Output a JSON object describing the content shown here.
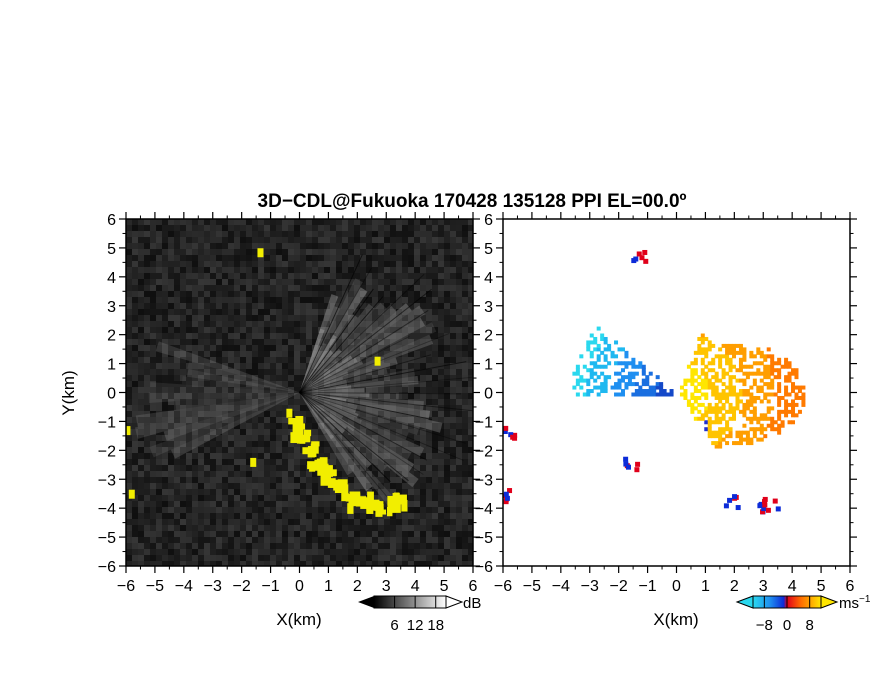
{
  "title": "3D−CDL@Fukuoka 170428 135128 PPI EL=00.0º",
  "chart_data": [
    {
      "type": "heatmap",
      "panel": "reflectivity",
      "xlabel": "X(km)",
      "ylabel": "Y(km)",
      "xlim": [
        -6,
        6
      ],
      "ylim": [
        -6,
        6
      ],
      "xticks": [
        "−6",
        "−5",
        "−4",
        "−3",
        "−2",
        "−1",
        "0",
        "1",
        "2",
        "3",
        "4",
        "5",
        "6"
      ],
      "yticks": [
        "−6",
        "−5",
        "−4",
        "−3",
        "−2",
        "−1",
        "0",
        "1",
        "2",
        "3",
        "4",
        "5",
        "6"
      ],
      "colorbar": {
        "unit": "dB",
        "ticks": [
          "6",
          "12",
          "18"
        ],
        "range": [
          0,
          21
        ]
      },
      "highlight_color": "#f2ee00",
      "highlight_regions": [
        {
          "x": -0.35,
          "y": -0.7
        },
        {
          "x": 0.1,
          "y": -1.6
        },
        {
          "x": 0.9,
          "y": -2.6
        },
        {
          "x": 1.8,
          "y": -3.7
        },
        {
          "x": 2.8,
          "y": -3.9
        },
        {
          "x": 3.4,
          "y": -3.7
        },
        {
          "x": -5.95,
          "y": -1.3
        },
        {
          "x": -5.8,
          "y": -3.5
        },
        {
          "x": -1.6,
          "y": -2.4
        },
        {
          "x": -1.35,
          "y": 4.85
        },
        {
          "x": 2.7,
          "y": 1.1
        }
      ]
    },
    {
      "type": "heatmap",
      "panel": "doppler-velocity",
      "xlabel": "X(km)",
      "xlim": [
        -6,
        6
      ],
      "ylim": [
        -6,
        6
      ],
      "xticks": [
        "−6",
        "−5",
        "−4",
        "−3",
        "−2",
        "−1",
        "0",
        "1",
        "2",
        "3",
        "4",
        "5",
        "6"
      ],
      "yticks": [
        "−6",
        "−5",
        "−4",
        "−3",
        "−2",
        "−1",
        "0",
        "1",
        "2",
        "3",
        "4",
        "5",
        "6"
      ],
      "colorbar": {
        "unit": "ms",
        "unit_exp": "−1",
        "ticks": [
          "−8",
          "0",
          "8"
        ],
        "range": [
          -12,
          12
        ]
      },
      "approaching_color": "#1a6fe0",
      "receding_color": "#ff8c00"
    }
  ]
}
